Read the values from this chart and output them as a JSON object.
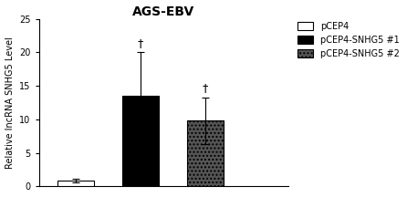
{
  "title": "AGS-EBV",
  "ylabel": "Relative lncRNA SNHG5 Level",
  "ylim": [
    0,
    25
  ],
  "yticks": [
    0,
    5,
    10,
    15,
    20,
    25
  ],
  "categories": [
    "pCEP4",
    "pCEP4-SNHG5 #1",
    "pCEP4-SNHG5 #2"
  ],
  "values": [
    0.9,
    13.5,
    9.8
  ],
  "errors": [
    0.3,
    6.5,
    3.5
  ],
  "bar_colors": [
    "white",
    "black",
    "#555555"
  ],
  "bar_edgecolors": [
    "black",
    "black",
    "black"
  ],
  "bar_hatches": [
    "",
    "",
    "...."
  ],
  "significance": [
    false,
    true,
    true
  ],
  "sig_symbol": "†",
  "legend_labels": [
    "pCEP4",
    "pCEP4-SNHG5 #1",
    "pCEP4-SNHG5 #2"
  ],
  "legend_colors": [
    "white",
    "black",
    "#555555"
  ],
  "legend_hatches": [
    "",
    "",
    "...."
  ],
  "bar_width": 0.4,
  "x_positions": [
    0.5,
    1.2,
    1.9
  ],
  "xlim": [
    0.1,
    2.8
  ],
  "figsize": [
    4.46,
    2.16
  ],
  "dpi": 100,
  "title_fontsize": 10,
  "axis_fontsize": 7,
  "tick_fontsize": 7,
  "legend_fontsize": 7,
  "sig_fontsize": 9
}
